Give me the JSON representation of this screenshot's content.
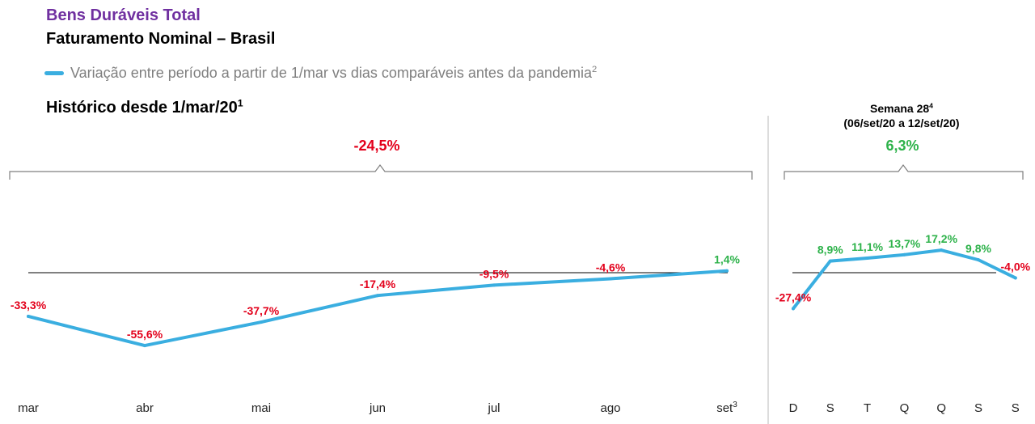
{
  "header": {
    "title": "Bens Duráveis Total",
    "subtitle": "Faturamento Nominal – Brasil",
    "legend_text": "Variação entre período a partir de 1/mar vs dias comparáveis antes da pandemia",
    "legend_sup": "2"
  },
  "colors": {
    "line": "#3aaee0",
    "negative": "#e3001b",
    "positive": "#2db24a",
    "title_accent": "#7030a0"
  },
  "chart_data": [
    {
      "type": "line",
      "title": "Histórico desde 1/mar/20",
      "title_sup": "1",
      "summary_value": "-24,5%",
      "categories": [
        "mar",
        "abr",
        "mai",
        "jun",
        "jul",
        "ago",
        "set"
      ],
      "category_sups": [
        "",
        "",
        "",
        "",
        "",
        "",
        "3"
      ],
      "values": [
        -33.3,
        -55.6,
        -37.7,
        -17.4,
        -9.5,
        -4.6,
        1.4
      ],
      "value_labels": [
        "-33,3%",
        "-55,6%",
        "-37,7%",
        "-17,4%",
        "-9,5%",
        "-4,6%",
        "1,4%"
      ],
      "ylim": [
        -70,
        45
      ],
      "baseline": 0
    },
    {
      "type": "line",
      "title": "Semana 28",
      "title_sup": "4",
      "subtitle": "(06/set/20 a 12/set/20)",
      "summary_value": "6,3%",
      "categories": [
        "D",
        "S",
        "T",
        "Q",
        "Q",
        "S",
        "S"
      ],
      "values": [
        -27.4,
        8.9,
        11.1,
        13.7,
        17.2,
        9.8,
        -4.0
      ],
      "value_labels": [
        "-27,4%",
        "8,9%",
        "11,1%",
        "13,7%",
        "17,2%",
        "9,8%",
        "-4,0%"
      ],
      "ylim": [
        -70,
        45
      ],
      "baseline": 0
    }
  ]
}
